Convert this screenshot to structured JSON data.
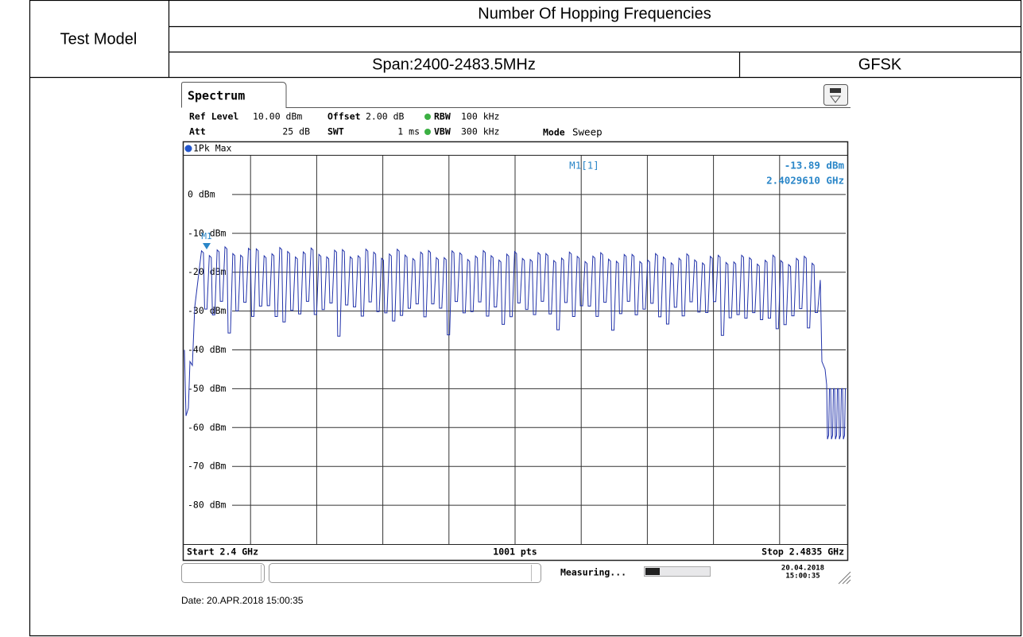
{
  "table": {
    "row_header": "Test Model",
    "title": "Number Of Hopping Frequencies",
    "span": "Span:2400-2483.5MHz",
    "modulation": "GFSK"
  },
  "screen": {
    "tab": "Spectrum",
    "ref_level": {
      "label": "Ref Level",
      "value": "10.00 dBm"
    },
    "offset": {
      "label": "Offset",
      "value": "2.00 dB"
    },
    "rbw": {
      "label": "RBW",
      "value": "100 kHz"
    },
    "att": {
      "label": "Att",
      "value": "25 dB"
    },
    "swt": {
      "label": "SWT",
      "value": "1 ms"
    },
    "vbw": {
      "label": "VBW",
      "value": "300 kHz"
    },
    "mode": {
      "label": "Mode",
      "value": "Sweep"
    },
    "trace": "1Pk Max",
    "marker": {
      "name": "M1[1]",
      "level": "-13.89 dBm",
      "frequency": "2.4029610 GHz",
      "tag": "M1"
    },
    "y_labels": [
      "0 dBm",
      "-10 dBm",
      "-20 dBm",
      "-30 dBm",
      "-40 dBm",
      "-50 dBm",
      "-60 dBm",
      "-70 dBm",
      "-80 dBm"
    ],
    "start": "Start 2.4 GHz",
    "points": "1001 pts",
    "stop": "Stop 2.4835 GHz",
    "status": "Measuring...",
    "status_date": "20.04.2018",
    "status_time": "15:00:35"
  },
  "footer": "Date: 20.APR.2018 15:00:35"
}
